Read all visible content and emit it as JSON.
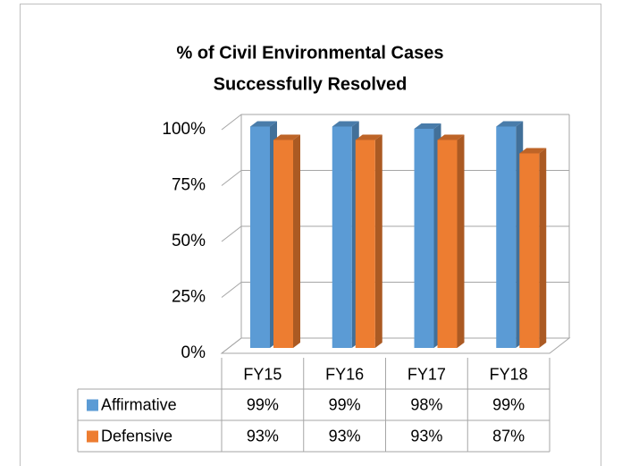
{
  "chart_data": {
    "type": "bar3d",
    "title_lines": [
      "% of  Civil Environmental Cases",
      "Successfully Resolved"
    ],
    "categories": [
      "FY15",
      "FY16",
      "FY17",
      "FY18"
    ],
    "series": [
      {
        "name": "Affirmative",
        "color": "#5b9bd5",
        "values": [
          99,
          99,
          98,
          99
        ],
        "value_labels": [
          "99%",
          "99%",
          "98%",
          "99%"
        ]
      },
      {
        "name": "Defensive",
        "color": "#ed7d31",
        "values": [
          93,
          93,
          93,
          87
        ],
        "value_labels": [
          "93%",
          "93%",
          "93%",
          "87%"
        ]
      }
    ],
    "ylim": [
      0,
      100
    ],
    "yticks": [
      {
        "value": 0,
        "label": "0%"
      },
      {
        "value": 25,
        "label": "25%"
      },
      {
        "value": 50,
        "label": "50%"
      },
      {
        "value": 75,
        "label": "75%"
      },
      {
        "value": 100,
        "label": "100%"
      }
    ],
    "grid": true,
    "data_table": true
  }
}
